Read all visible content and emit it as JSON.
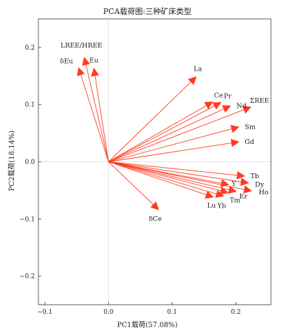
{
  "chart_data": {
    "type": "biplot",
    "title": "PCA载荷图:三种矿床类型",
    "xlabel": "PC1载荷(57.08%)",
    "ylabel": "PC2载荷(18.14%)",
    "xlim": [
      -0.11,
      0.255
    ],
    "ylim": [
      -0.25,
      0.25
    ],
    "xticks": [
      -0.1,
      0.0,
      0.1,
      0.2
    ],
    "xtick_labels": [
      "−0.1",
      "0.0",
      "0.1",
      "0.2"
    ],
    "yticks": [
      -0.2,
      -0.1,
      0.0,
      0.1,
      0.2
    ],
    "ytick_labels": [
      "−0.2",
      "−0.1",
      "0.0",
      "0.1",
      "0.2"
    ],
    "reference_lines": [
      {
        "axis": "x",
        "value": 0
      },
      {
        "axis": "y",
        "value": 0
      }
    ],
    "arrow_color": "#ff3b1f",
    "vectors": [
      {
        "name": "LREE/HREE",
        "x": -0.038,
        "y": 0.183
      },
      {
        "name": "δEu",
        "x": -0.047,
        "y": 0.165
      },
      {
        "name": "Eu",
        "x": -0.023,
        "y": 0.164
      },
      {
        "name": "La",
        "x": 0.138,
        "y": 0.149
      },
      {
        "name": "Ce",
        "x": 0.164,
        "y": 0.105
      },
      {
        "name": "Pr",
        "x": 0.177,
        "y": 0.104
      },
      {
        "name": "Nd",
        "x": 0.192,
        "y": 0.098
      },
      {
        "name": "ΣREE",
        "x": 0.224,
        "y": 0.096
      },
      {
        "name": "Sm",
        "x": 0.205,
        "y": 0.061
      },
      {
        "name": "Gd",
        "x": 0.205,
        "y": 0.035
      },
      {
        "name": "Tb",
        "x": 0.214,
        "y": -0.025
      },
      {
        "name": "Dy",
        "x": 0.22,
        "y": -0.037
      },
      {
        "name": "Y",
        "x": 0.189,
        "y": -0.04
      },
      {
        "name": "Ho",
        "x": 0.225,
        "y": -0.051
      },
      {
        "name": "Er",
        "x": 0.201,
        "y": -0.052
      },
      {
        "name": "Tm",
        "x": 0.188,
        "y": -0.054
      },
      {
        "name": "Yb",
        "x": 0.181,
        "y": -0.06
      },
      {
        "name": "Lu",
        "x": 0.165,
        "y": -0.062
      },
      {
        "name": "δCe",
        "x": 0.079,
        "y": -0.084
      }
    ]
  }
}
